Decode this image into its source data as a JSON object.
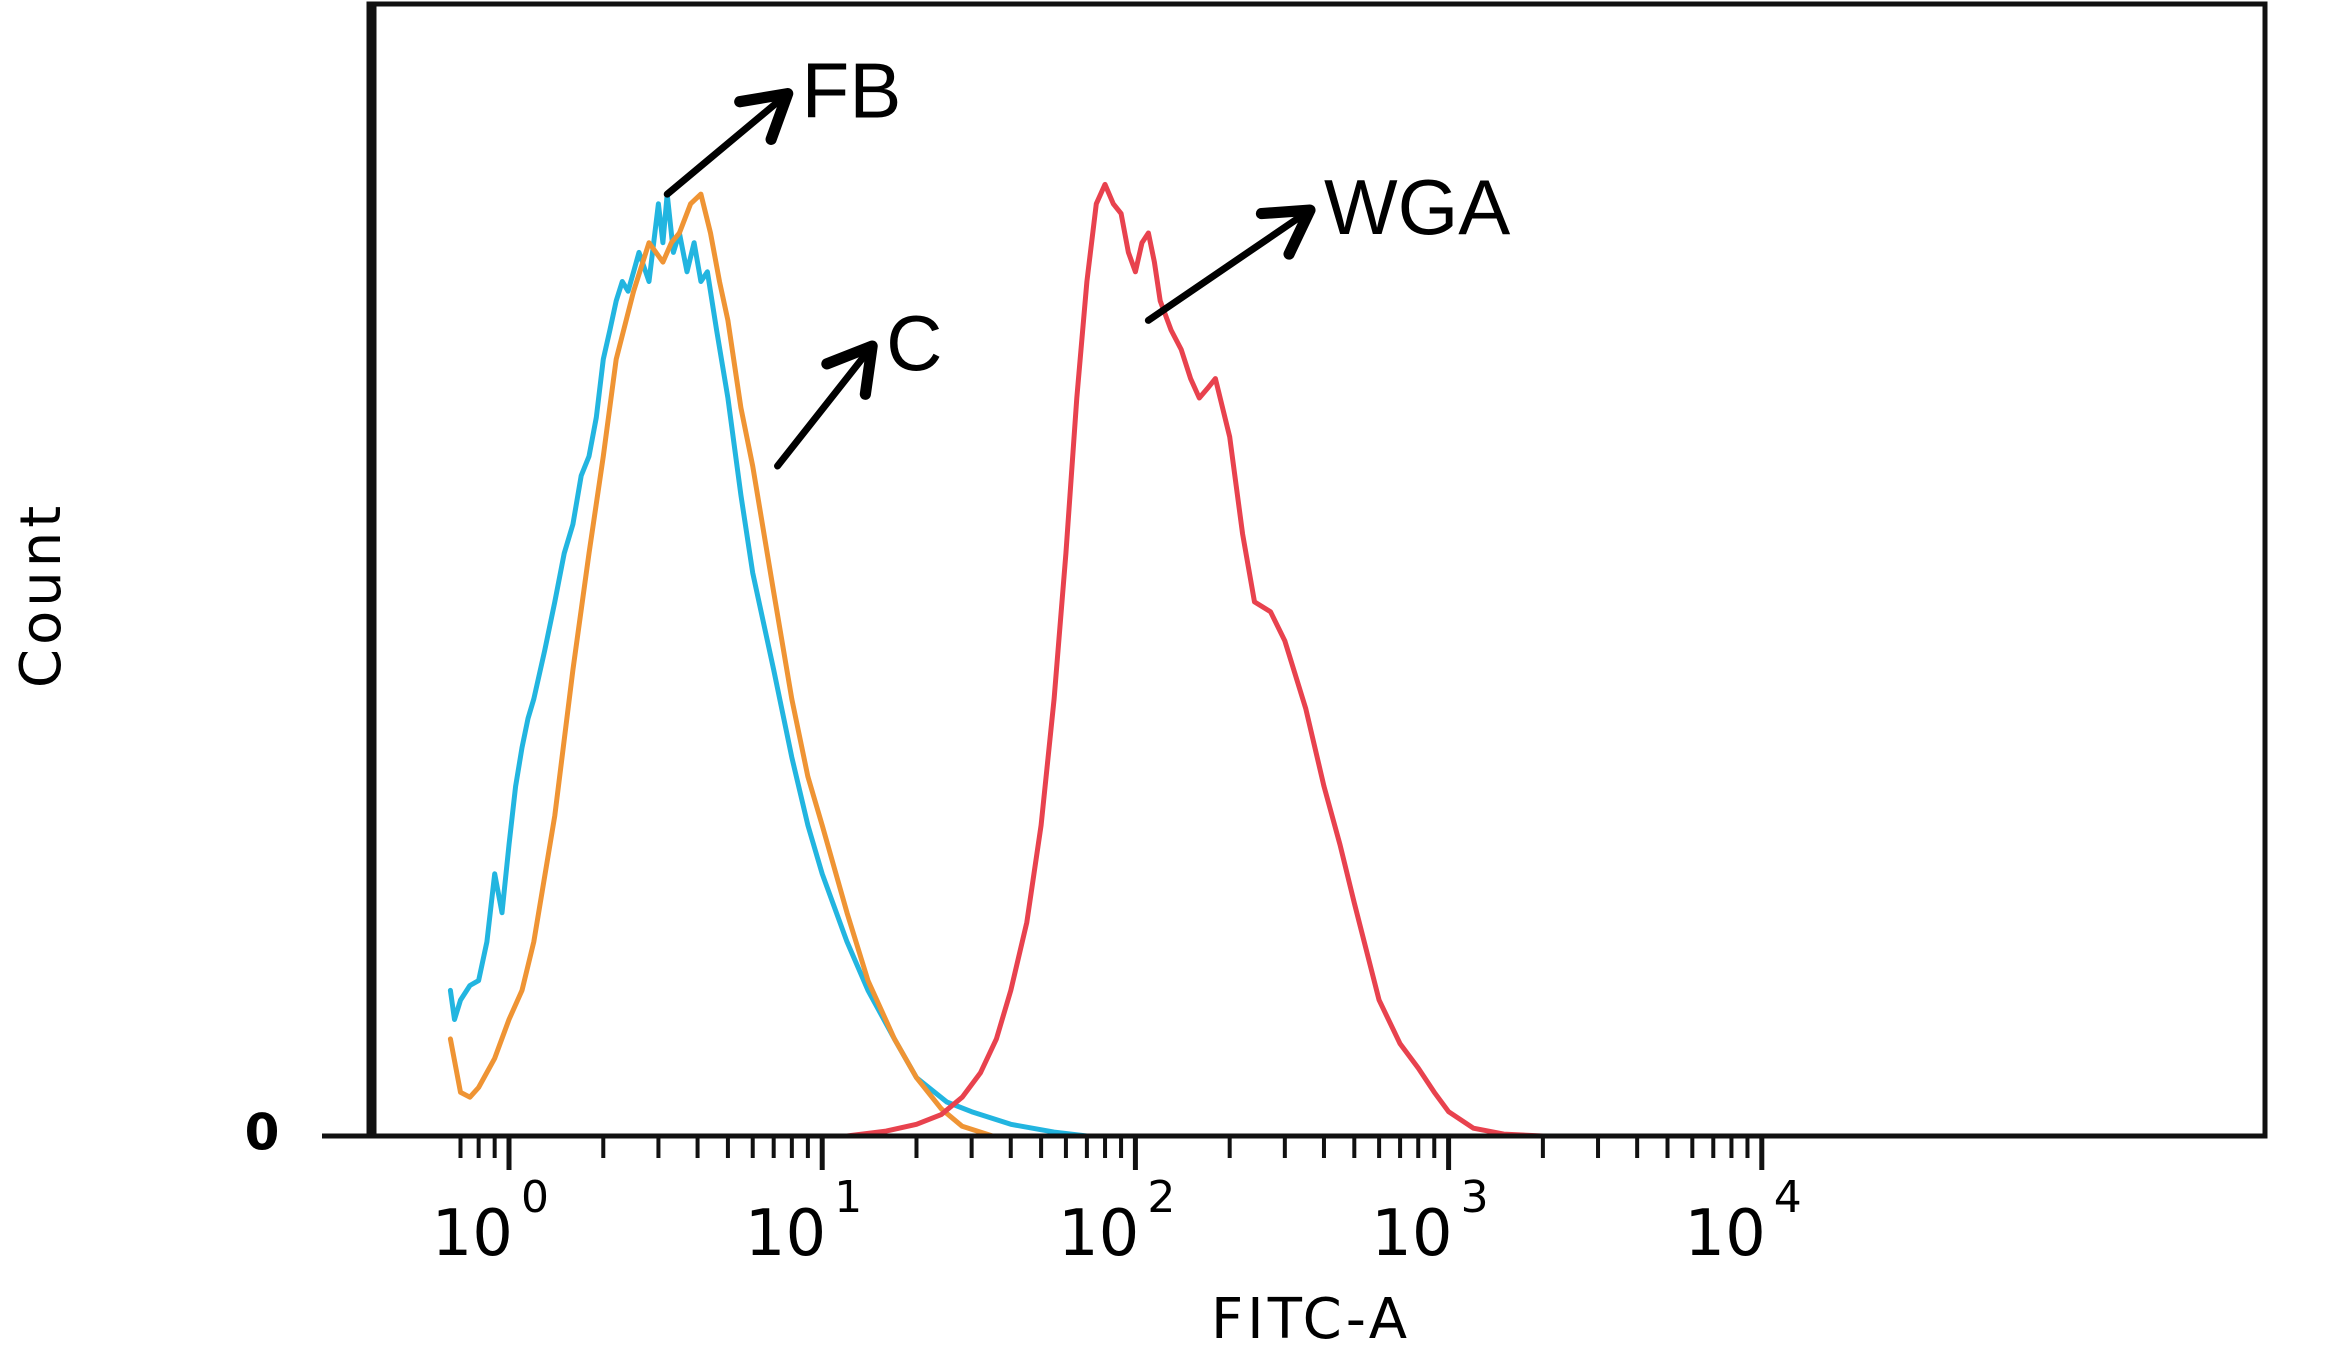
{
  "chart_data": {
    "type": "line",
    "title": "",
    "xlabel": "FITC-A",
    "ylabel": "Count",
    "x_scale": "log",
    "xlim": [
      0.65,
      10000
    ],
    "ylim": [
      0,
      1
    ],
    "grid": false,
    "legend": "none",
    "y_tick_labels": [
      "0"
    ],
    "x_tick_labels": [
      {
        "base": "10",
        "exp": "0",
        "value": 1
      },
      {
        "base": "10",
        "exp": "1",
        "value": 10
      },
      {
        "base": "10",
        "exp": "2",
        "value": 100
      },
      {
        "base": "10",
        "exp": "3",
        "value": 1000
      },
      {
        "base": "10",
        "exp": "4",
        "value": 10000
      }
    ],
    "annotations": [
      {
        "text": "FB",
        "series": "FB",
        "point_at": [
          3.2,
          0.97
        ],
        "text_at": [
          8.6,
          1.09
        ]
      },
      {
        "text": "C",
        "series": "C",
        "point_at": [
          7.2,
          0.69
        ],
        "text_at": [
          16,
          0.83
        ]
      },
      {
        "text": "WGA",
        "series": "WGA",
        "point_at": [
          110,
          0.84
        ],
        "text_at": [
          400,
          0.97
        ]
      }
    ],
    "series": [
      {
        "name": "FB",
        "color": "#22b5e0",
        "x": [
          0.65,
          0.67,
          0.7,
          0.75,
          0.8,
          0.85,
          0.9,
          0.95,
          1.0,
          1.05,
          1.1,
          1.15,
          1.2,
          1.3,
          1.4,
          1.5,
          1.6,
          1.7,
          1.8,
          1.9,
          2.0,
          2.1,
          2.2,
          2.3,
          2.4,
          2.5,
          2.6,
          2.8,
          3.0,
          3.1,
          3.2,
          3.35,
          3.5,
          3.7,
          3.9,
          4.1,
          4.3,
          4.6,
          5.0,
          5.5,
          6.0,
          7.0,
          8.0,
          9.0,
          10.0,
          12.0,
          14.0,
          17.0,
          20.0,
          25.0,
          30.0,
          40.0,
          55.0,
          70.0
        ],
        "y": [
          0.15,
          0.12,
          0.14,
          0.155,
          0.16,
          0.2,
          0.27,
          0.23,
          0.3,
          0.36,
          0.4,
          0.43,
          0.45,
          0.5,
          0.55,
          0.6,
          0.63,
          0.68,
          0.7,
          0.74,
          0.8,
          0.83,
          0.86,
          0.88,
          0.87,
          0.89,
          0.91,
          0.88,
          0.96,
          0.92,
          0.97,
          0.91,
          0.93,
          0.89,
          0.92,
          0.88,
          0.89,
          0.83,
          0.76,
          0.66,
          0.58,
          0.48,
          0.39,
          0.32,
          0.27,
          0.2,
          0.15,
          0.1,
          0.06,
          0.035,
          0.025,
          0.012,
          0.004,
          0.0
        ]
      },
      {
        "name": "C",
        "color": "#ef9434",
        "x": [
          0.65,
          0.7,
          0.75,
          0.8,
          0.9,
          1.0,
          1.1,
          1.2,
          1.4,
          1.6,
          1.8,
          2.0,
          2.2,
          2.5,
          2.8,
          3.1,
          3.3,
          3.5,
          3.8,
          4.1,
          4.4,
          4.7,
          5.0,
          5.5,
          6.0,
          7.0,
          8.0,
          9.0,
          10.0,
          12.0,
          14.0,
          17.0,
          20.0,
          24.0,
          28.0,
          35.0
        ],
        "y": [
          0.1,
          0.045,
          0.04,
          0.05,
          0.08,
          0.12,
          0.15,
          0.2,
          0.33,
          0.48,
          0.6,
          0.7,
          0.8,
          0.87,
          0.92,
          0.9,
          0.92,
          0.93,
          0.96,
          0.97,
          0.93,
          0.88,
          0.84,
          0.75,
          0.69,
          0.56,
          0.45,
          0.37,
          0.32,
          0.23,
          0.16,
          0.1,
          0.06,
          0.028,
          0.01,
          0.0
        ]
      },
      {
        "name": "WGA",
        "color": "#e8424e",
        "x": [
          0.65,
          12.0,
          16.0,
          20.0,
          24.0,
          28.0,
          32.0,
          36.0,
          40.0,
          45.0,
          50.0,
          55.0,
          60.0,
          65.0,
          70.0,
          75.0,
          80.0,
          85.0,
          90.0,
          95.0,
          100.0,
          105.0,
          110.0,
          115.0,
          120.0,
          130.0,
          140.0,
          150.0,
          160.0,
          170.0,
          180.0,
          200.0,
          220.0,
          240.0,
          270.0,
          300.0,
          350.0,
          400.0,
          450.0,
          500.0,
          600.0,
          700.0,
          800.0,
          900.0,
          1000.0,
          1200.0,
          1500.0,
          2000.0,
          10000.0
        ],
        "y": [
          0.0,
          0.0,
          0.005,
          0.012,
          0.022,
          0.04,
          0.065,
          0.1,
          0.15,
          0.22,
          0.32,
          0.45,
          0.6,
          0.76,
          0.88,
          0.96,
          0.98,
          0.96,
          0.95,
          0.91,
          0.89,
          0.92,
          0.93,
          0.9,
          0.86,
          0.83,
          0.81,
          0.78,
          0.76,
          0.77,
          0.78,
          0.72,
          0.62,
          0.55,
          0.54,
          0.51,
          0.44,
          0.36,
          0.3,
          0.24,
          0.14,
          0.095,
          0.07,
          0.045,
          0.025,
          0.008,
          0.002,
          0.0,
          0.0
        ]
      }
    ]
  }
}
